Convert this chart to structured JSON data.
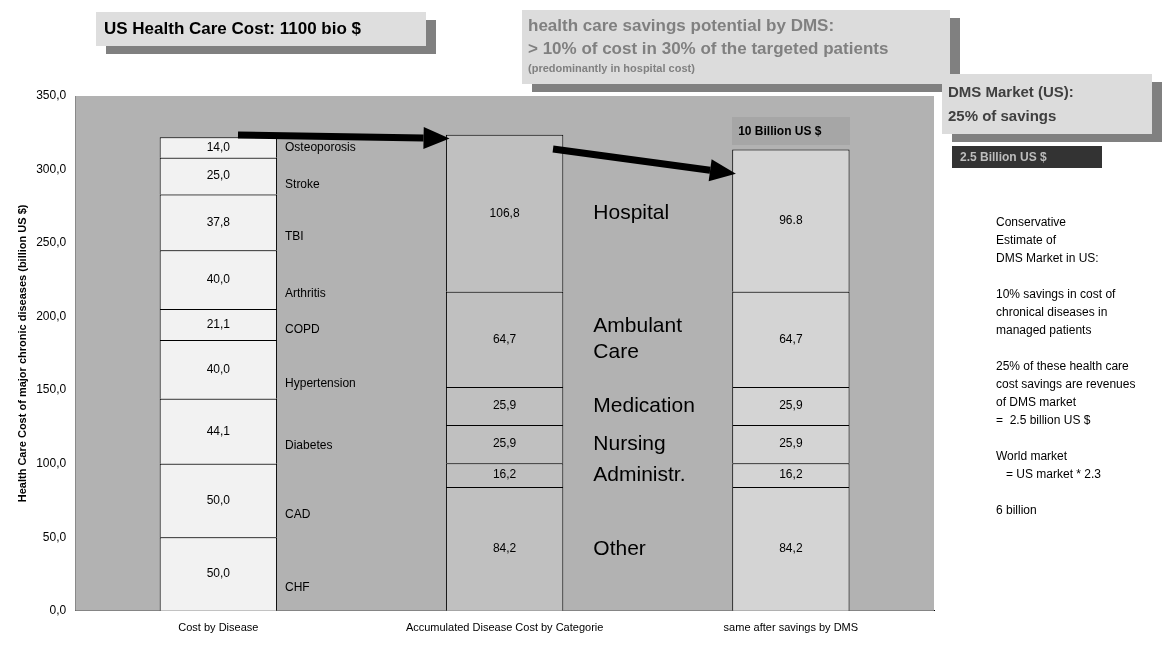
{
  "chart_data": {
    "type": "bar",
    "stacked": true,
    "ylabel": "Health Care Cost of major chronic diseases (billion US $)",
    "categories": [
      "Cost by Disease",
      "Accumulated Disease Cost by Categorie",
      "same after savings by DMS"
    ],
    "ylim": [
      0,
      350
    ],
    "yticks": [
      {
        "value": 0,
        "label": "0,0"
      },
      {
        "value": 50,
        "label": "50,0"
      },
      {
        "value": 100,
        "label": "100,0"
      },
      {
        "value": 150,
        "label": "150,0"
      },
      {
        "value": 200,
        "label": "200,0"
      },
      {
        "value": 250,
        "label": "250,0"
      },
      {
        "value": 300,
        "label": "300,0"
      },
      {
        "value": 350,
        "label": "350,0"
      }
    ],
    "legend": false,
    "series": [
      {
        "name": "CHF",
        "color": "#f2f2f2",
        "values": [
          50,
          null,
          null
        ],
        "value_labels": [
          "50,0",
          null,
          null
        ]
      },
      {
        "name": "CAD",
        "color": "#f2f2f2",
        "values": [
          50,
          null,
          null
        ],
        "value_labels": [
          "50,0",
          null,
          null
        ]
      },
      {
        "name": "Diabetes",
        "color": "#f2f2f2",
        "values": [
          44.1,
          null,
          null
        ],
        "value_labels": [
          "44,1",
          null,
          null
        ]
      },
      {
        "name": "Hypertension",
        "color": "#f2f2f2",
        "values": [
          40,
          null,
          null
        ],
        "value_labels": [
          "40,0",
          null,
          null
        ]
      },
      {
        "name": "COPD",
        "color": "#f2f2f2",
        "values": [
          21.1,
          null,
          null
        ],
        "value_labels": [
          "21,1",
          null,
          null
        ]
      },
      {
        "name": "Arthritis",
        "color": "#f2f2f2",
        "values": [
          40,
          null,
          null
        ],
        "value_labels": [
          "40,0",
          null,
          null
        ]
      },
      {
        "name": "TBI",
        "color": "#f2f2f2",
        "values": [
          37.8,
          null,
          null
        ],
        "value_labels": [
          "37,8",
          null,
          null
        ]
      },
      {
        "name": "Stroke",
        "color": "#f2f2f2",
        "values": [
          25,
          null,
          null
        ],
        "value_labels": [
          "25,0",
          null,
          null
        ]
      },
      {
        "name": "Osteoporosis",
        "color": "#f2f2f2",
        "values": [
          14,
          null,
          null
        ],
        "value_labels": [
          "14,0",
          null,
          null
        ]
      },
      {
        "name": "Other",
        "colors": [
          "#c0c0c0",
          "#c0c0c0",
          "#d4d4d4"
        ],
        "values": [
          null,
          84.2,
          84.2
        ],
        "value_labels": [
          null,
          "84,2",
          "84,2"
        ]
      },
      {
        "name": "Administr.",
        "colors": [
          "#c0c0c0",
          "#c0c0c0",
          "#d4d4d4"
        ],
        "values": [
          null,
          16.2,
          16.2
        ],
        "value_labels": [
          null,
          "16,2",
          "16,2"
        ]
      },
      {
        "name": "Nursing",
        "colors": [
          "#c0c0c0",
          "#c0c0c0",
          "#d4d4d4"
        ],
        "values": [
          null,
          25.9,
          25.9
        ],
        "value_labels": [
          null,
          "25,9",
          "25,9"
        ]
      },
      {
        "name": "Medication",
        "colors": [
          "#c0c0c0",
          "#c0c0c0",
          "#d4d4d4"
        ],
        "values": [
          null,
          25.9,
          25.9
        ],
        "value_labels": [
          null,
          "25,9",
          "25,9"
        ]
      },
      {
        "name": "Ambulant Care",
        "colors": [
          "#c0c0c0",
          "#c0c0c0",
          "#d4d4d4"
        ],
        "values": [
          null,
          64.7,
          64.7
        ],
        "value_labels": [
          null,
          "64,7",
          "64,7"
        ]
      },
      {
        "name": "Hospital",
        "colors": [
          "#c0c0c0",
          "#c0c0c0",
          "#d4d4d4"
        ],
        "values": [
          null,
          106.8,
          96.8
        ],
        "value_labels": [
          null,
          "106,8",
          "96.8"
        ]
      }
    ],
    "annotations": [
      "US Health Care Cost: 1100 bio $",
      "health care savings potential by DMS:",
      "> 10% of cost in 30% of the targeted patients",
      "(predominantly in hospital cost)",
      "DMS Market (US):",
      "25% of savings",
      "10 Billion US $",
      "2.5 Billion US $",
      "Conservative\nEstimate of\nDMS Market in US:",
      "10% savings in cost of\nchronical diseases in\nmanaged patients",
      "25% of these health care\ncost savings are revenues\nof DMS market\n=  2.5 billion US $",
      "World market\n   = US market * 2.3",
      "6 billion"
    ]
  }
}
